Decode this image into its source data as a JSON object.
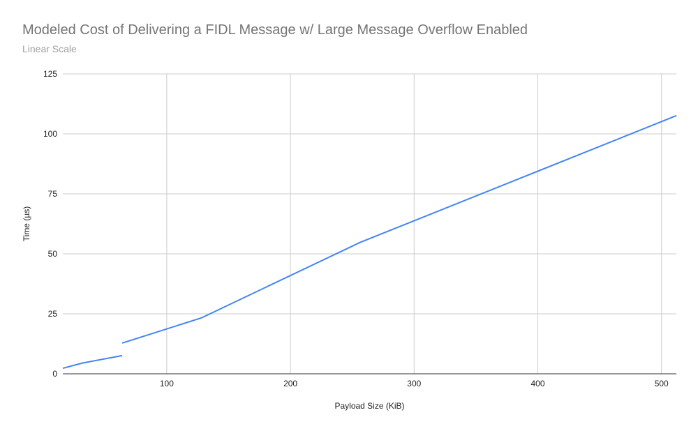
{
  "chart_data": {
    "type": "line",
    "title": "Modeled Cost of Delivering a FIDL Message w/ Large Message Overflow Enabled",
    "subtitle": "Linear Scale",
    "xlabel": "Payload Size (KiB)",
    "ylabel": "Time (µs)",
    "xlim": [
      16,
      512
    ],
    "ylim": [
      0,
      125
    ],
    "xticks": [
      100,
      200,
      300,
      400,
      500
    ],
    "yticks": [
      0,
      25,
      50,
      75,
      100,
      125
    ],
    "grid": true,
    "color": "#4285f4",
    "series": [
      {
        "segments": [
          [
            [
              16,
              2.3
            ],
            [
              32,
              4.5
            ],
            [
              64,
              7.6
            ]
          ],
          [
            [
              64,
              12.8
            ],
            [
              128,
              23.3
            ],
            [
              256,
              54.7
            ],
            [
              512,
              107.6
            ]
          ]
        ]
      }
    ]
  }
}
